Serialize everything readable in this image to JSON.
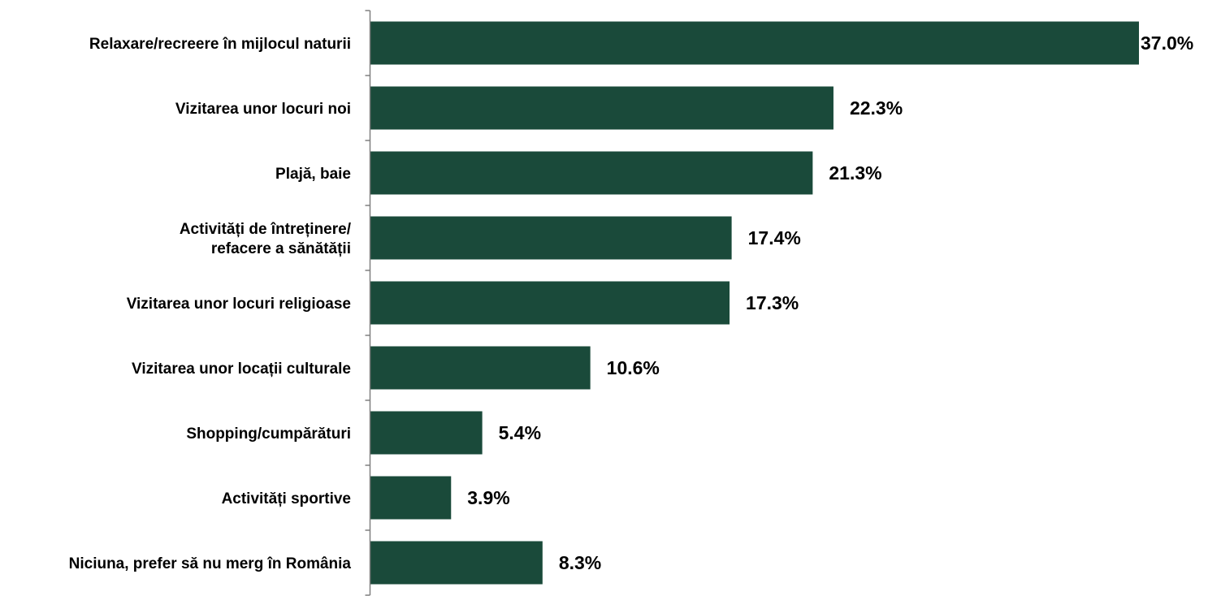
{
  "chart_data": {
    "type": "bar",
    "orientation": "horizontal",
    "categories": [
      "Relaxare/recreere în mijlocul naturii",
      "Vizitarea unor locuri noi",
      "Plajă, baie",
      "Activități de întreținere/\nrefacere a sănătății",
      "Vizitarea unor locuri religioase",
      "Vizitarea unor locații culturale",
      "Shopping/cumpărături",
      "Activități sportive",
      "Niciuna, prefer să nu merg în România"
    ],
    "values": [
      37.0,
      22.3,
      21.3,
      17.4,
      17.3,
      10.6,
      5.4,
      3.9,
      8.3
    ],
    "value_labels": [
      "37.0%",
      "22.3%",
      "21.3%",
      "17.4%",
      "17.3%",
      "10.6%",
      "5.4%",
      "3.9%",
      "8.3%"
    ],
    "unit": "%",
    "xlim": [
      0,
      37.0
    ],
    "grid": false,
    "bar_color": "#1a4a3a"
  }
}
